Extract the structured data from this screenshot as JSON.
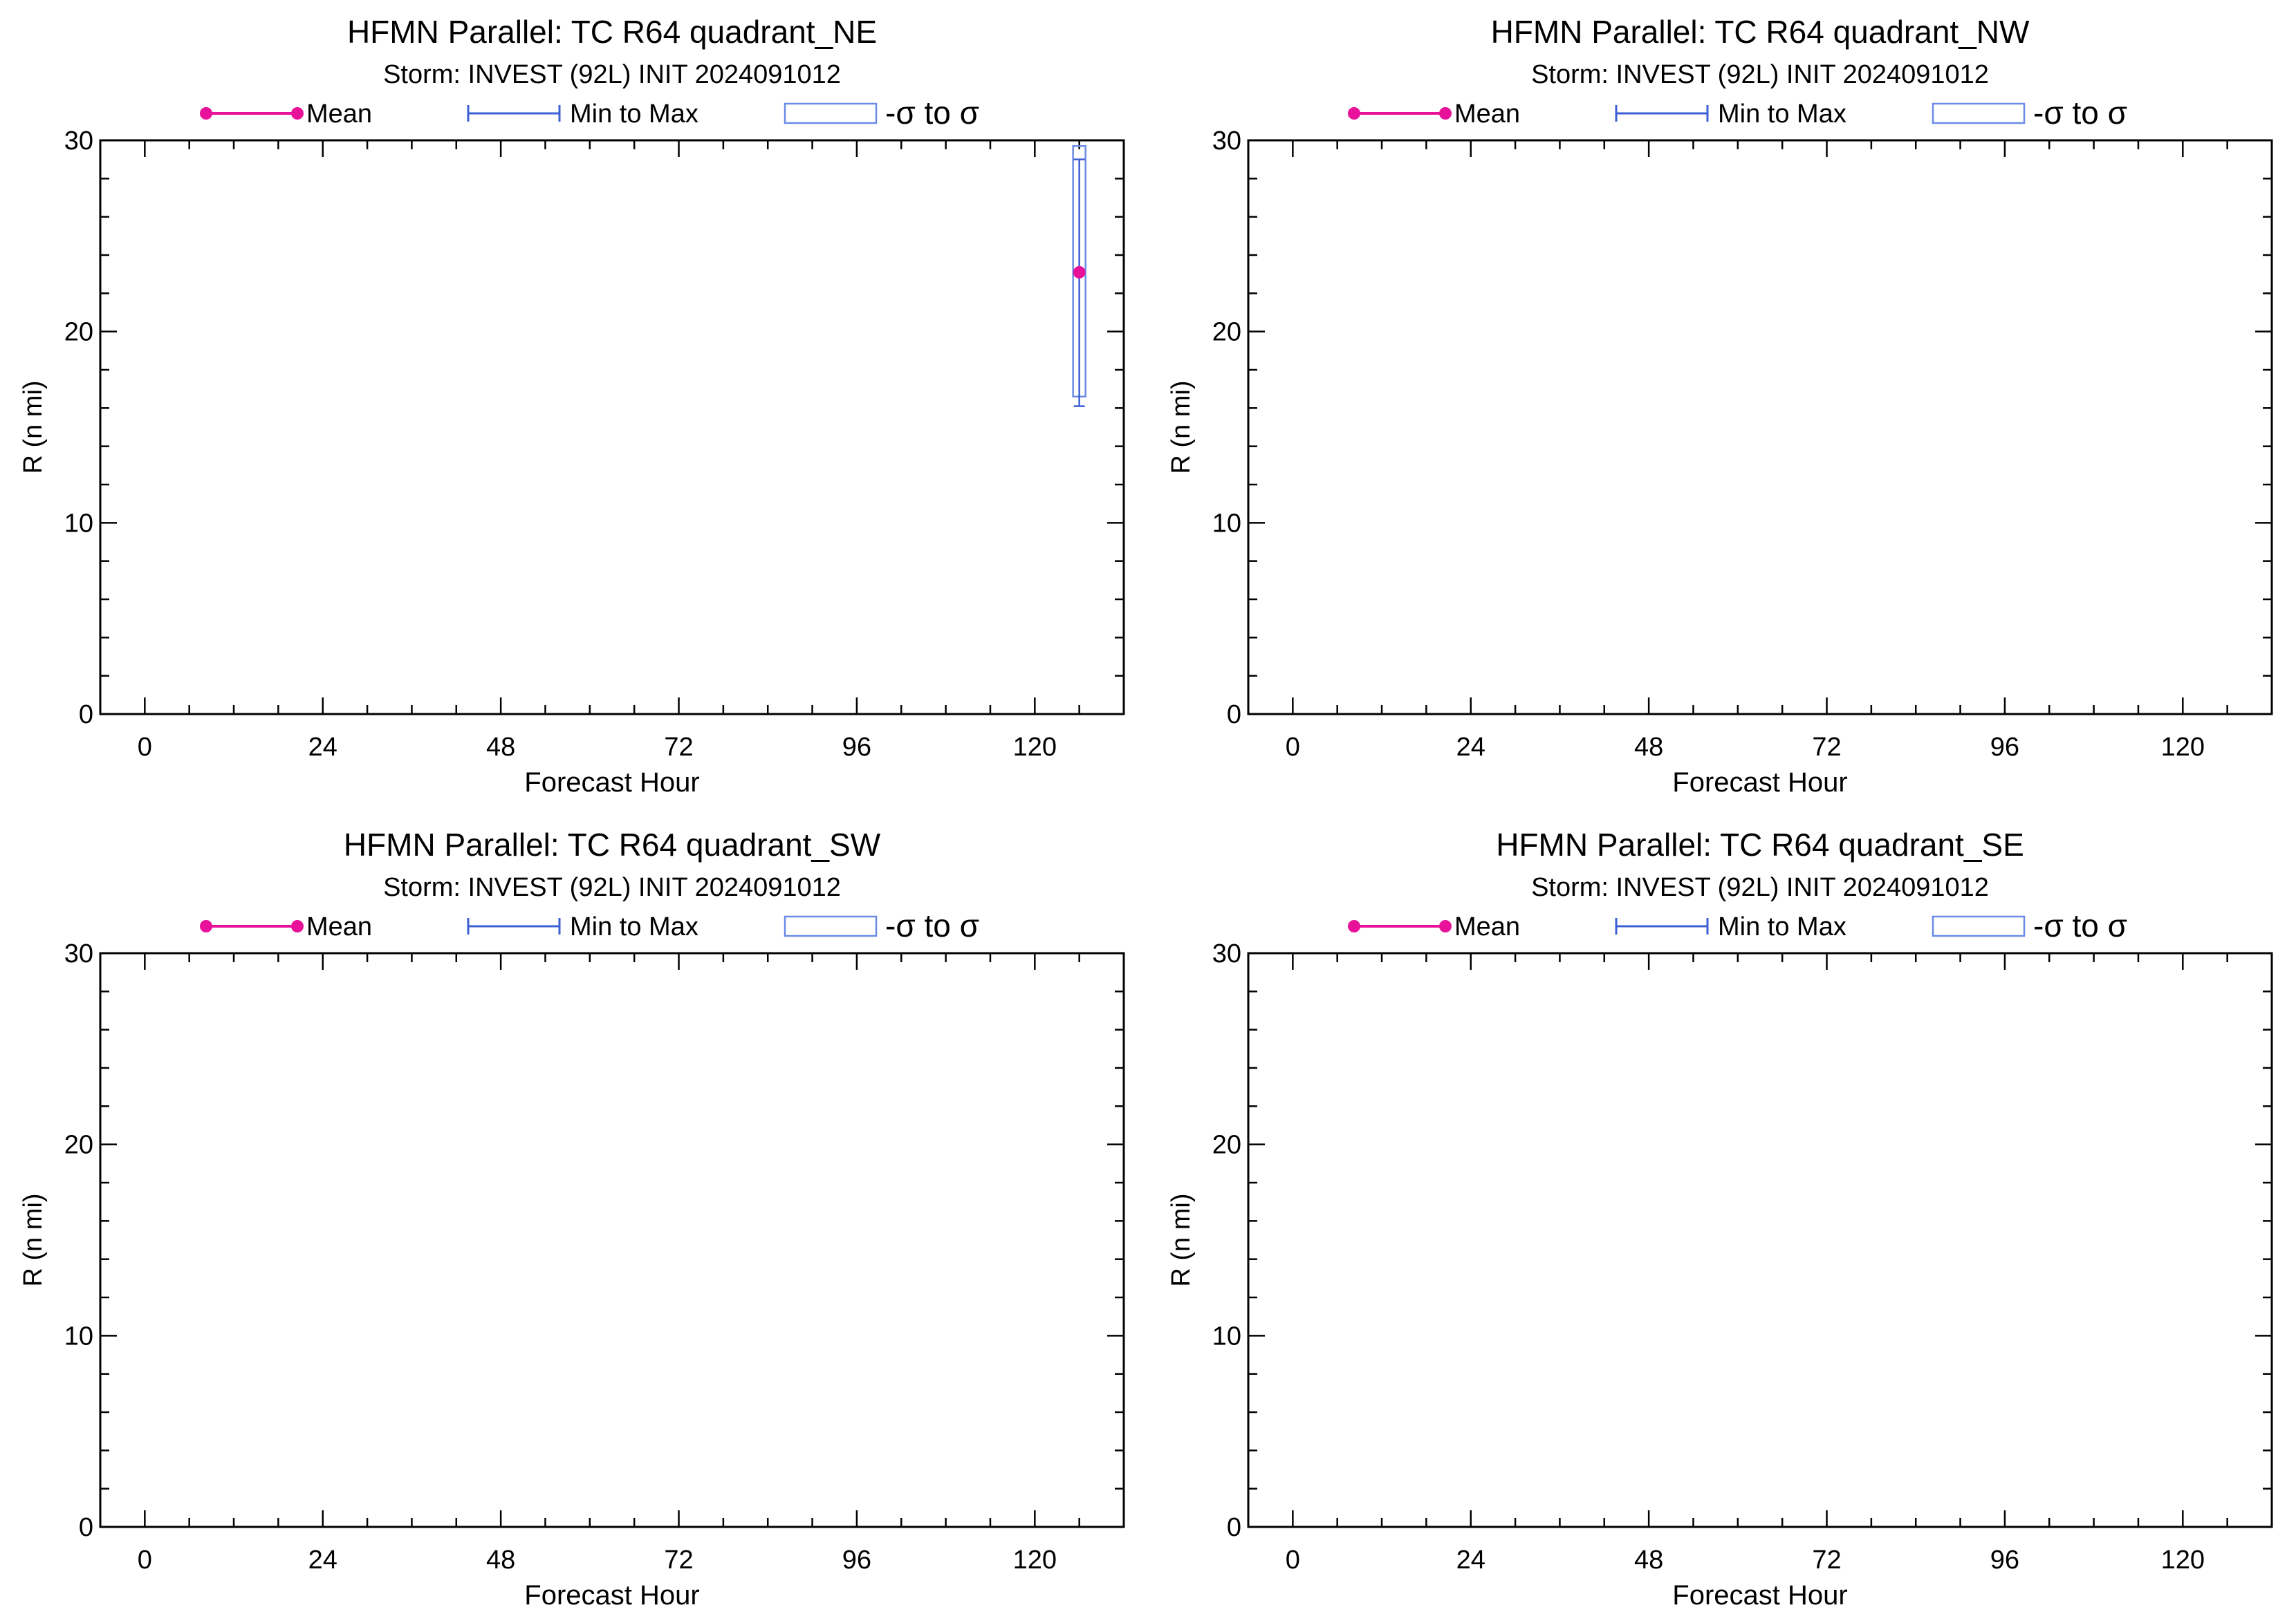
{
  "figure": {
    "legend_labels": {
      "mean": "Mean",
      "range": "Min to Max",
      "sigma": "-σ to σ"
    },
    "colors": {
      "mean": "#e8119a",
      "range": "#3d5fd6",
      "sigma": "#6a8ae6",
      "axis": "#000000"
    },
    "x_tick_labels": [
      "0",
      "24",
      "48",
      "72",
      "96",
      "120"
    ],
    "y_tick_labels": [
      "0",
      "10",
      "20",
      "30"
    ]
  },
  "chart_data": [
    {
      "type": "line",
      "title": "HFMN Parallel: TC  R64 quadrant_NE",
      "subtitle": "Storm: INVEST (92L) INIT 2024091012",
      "xlabel": "Forecast Hour",
      "ylabel": "R (n mi)",
      "xlim": [
        -6,
        132
      ],
      "ylim": [
        0,
        30
      ],
      "xticks": [
        0,
        24,
        48,
        72,
        96,
        120
      ],
      "yticks": [
        0,
        10,
        20,
        30
      ],
      "grid": false,
      "legend": "top",
      "series": [
        {
          "name": "Mean",
          "points": [
            {
              "x": 126,
              "mean": 23.1,
              "min": 16.1,
              "max": 29.0,
              "sigma_low": 16.6,
              "sigma_high": 29.7
            }
          ]
        }
      ]
    },
    {
      "type": "line",
      "title": "HFMN Parallel: TC  R64 quadrant_NW",
      "subtitle": "Storm: INVEST (92L) INIT 2024091012",
      "xlabel": "Forecast Hour",
      "ylabel": "R (n mi)",
      "xlim": [
        -6,
        132
      ],
      "ylim": [
        0,
        30
      ],
      "xticks": [
        0,
        24,
        48,
        72,
        96,
        120
      ],
      "yticks": [
        0,
        10,
        20,
        30
      ],
      "grid": false,
      "legend": "top",
      "series": [
        {
          "name": "Mean",
          "points": []
        }
      ]
    },
    {
      "type": "line",
      "title": "HFMN Parallel: TC  R64 quadrant_SW",
      "subtitle": "Storm: INVEST (92L) INIT 2024091012",
      "xlabel": "Forecast Hour",
      "ylabel": "R (n mi)",
      "xlim": [
        -6,
        132
      ],
      "ylim": [
        0,
        30
      ],
      "xticks": [
        0,
        24,
        48,
        72,
        96,
        120
      ],
      "yticks": [
        0,
        10,
        20,
        30
      ],
      "grid": false,
      "legend": "top",
      "series": [
        {
          "name": "Mean",
          "points": []
        }
      ]
    },
    {
      "type": "line",
      "title": "HFMN Parallel: TC  R64 quadrant_SE",
      "subtitle": "Storm: INVEST (92L) INIT 2024091012",
      "xlabel": "Forecast Hour",
      "ylabel": "R (n mi)",
      "xlim": [
        -6,
        132
      ],
      "ylim": [
        0,
        30
      ],
      "xticks": [
        0,
        24,
        48,
        72,
        96,
        120
      ],
      "yticks": [
        0,
        10,
        20,
        30
      ],
      "grid": false,
      "legend": "top",
      "series": [
        {
          "name": "Mean",
          "points": []
        }
      ]
    }
  ]
}
